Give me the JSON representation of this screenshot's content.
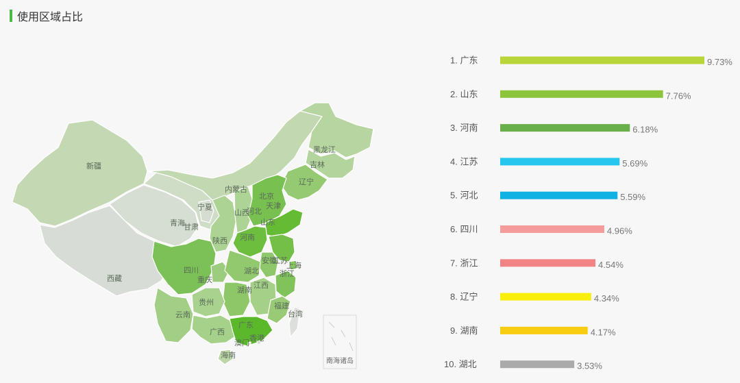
{
  "header": {
    "title": "使用区域占比"
  },
  "map": {
    "inset_label": "南海诸岛",
    "provinces": [
      {
        "id": "xinjiang",
        "name": "新疆",
        "color": "#c5d8b4"
      },
      {
        "id": "xizang",
        "name": "西藏",
        "color": "#d8dcd6"
      },
      {
        "id": "qinghai",
        "name": "青海",
        "color": "#d6ddd2"
      },
      {
        "id": "gansu",
        "name": "甘肃",
        "color": "#cfdcc6"
      },
      {
        "id": "neimenggu",
        "name": "内蒙古",
        "color": "#c2d8b0"
      },
      {
        "id": "ningxia",
        "name": "宁夏",
        "color": "#d4ddcf"
      },
      {
        "id": "shaanxi",
        "name": "陕西",
        "color": "#acd393"
      },
      {
        "id": "shanxi",
        "name": "山西",
        "color": "#aed495"
      },
      {
        "id": "heilongjiang",
        "name": "黑龙江",
        "color": "#b7d5a1"
      },
      {
        "id": "jilin",
        "name": "吉林",
        "color": "#b4d49d"
      },
      {
        "id": "liaoning",
        "name": "辽宁",
        "color": "#95ca73"
      },
      {
        "id": "beijing",
        "name": "北京",
        "color": "#8cc767"
      },
      {
        "id": "tianjin",
        "name": "天津",
        "color": "#9ccd7b"
      },
      {
        "id": "hebei",
        "name": "河北",
        "color": "#78c04f"
      },
      {
        "id": "shandong",
        "name": "山东",
        "color": "#66bb35"
      },
      {
        "id": "henan",
        "name": "河南",
        "color": "#6dbd3f"
      },
      {
        "id": "jiangsu",
        "name": "江苏",
        "color": "#74bf48"
      },
      {
        "id": "anhui",
        "name": "安徽",
        "color": "#8fc76b"
      },
      {
        "id": "shanghai",
        "name": "上海",
        "color": "#88c662"
      },
      {
        "id": "sichuan",
        "name": "四川",
        "color": "#7cc157"
      },
      {
        "id": "chongqing",
        "name": "重庆",
        "color": "#9ccd7e"
      },
      {
        "id": "hubei",
        "name": "湖北",
        "color": "#92c96e"
      },
      {
        "id": "zhejiang",
        "name": "浙江",
        "color": "#80c35a"
      },
      {
        "id": "hunan",
        "name": "湖南",
        "color": "#8dc768"
      },
      {
        "id": "jiangxi",
        "name": "江西",
        "color": "#a4d088"
      },
      {
        "id": "guizhou",
        "name": "贵州",
        "color": "#a9d28e"
      },
      {
        "id": "yunnan",
        "name": "云南",
        "color": "#a2cf85"
      },
      {
        "id": "guangxi",
        "name": "广西",
        "color": "#a6d18a"
      },
      {
        "id": "guangdong",
        "name": "广东",
        "color": "#5cb82b"
      },
      {
        "id": "fujian",
        "name": "福建",
        "color": "#99cb77"
      },
      {
        "id": "taiwan",
        "name": "台湾",
        "color": "#dcdfdc"
      },
      {
        "id": "hainan",
        "name": "海南",
        "color": "#bcd6a8"
      },
      {
        "id": "hongkong",
        "name": "香港",
        "color": "#d4ddcf"
      },
      {
        "id": "macau",
        "name": "澳门",
        "color": "#d4ddcf"
      }
    ]
  },
  "chart_data": {
    "type": "bar",
    "orientation": "horizontal",
    "title": "",
    "categories": [
      "1. 广东",
      "2. 山东",
      "3. 河南",
      "4. 江苏",
      "5. 河北",
      "6. 四川",
      "7. 浙江",
      "8. 辽宁",
      "9. 湖南",
      "10. 湖北"
    ],
    "values": [
      9.73,
      7.76,
      6.18,
      5.69,
      5.59,
      4.96,
      4.54,
      4.34,
      4.17,
      3.53
    ],
    "value_labels": [
      "9.73%",
      "7.76%",
      "6.18%",
      "5.69%",
      "5.59%",
      "4.96%",
      "4.54%",
      "4.34%",
      "4.17%",
      "3.53%"
    ],
    "colors": [
      "#b8d53a",
      "#8cc43c",
      "#6ab04a",
      "#26c6ee",
      "#0fb2e2",
      "#f49b9b",
      "#f18484",
      "#f9ee0c",
      "#f8cc10",
      "#aaaaaa"
    ],
    "xlim": [
      0,
      9.73
    ],
    "grid": false
  }
}
